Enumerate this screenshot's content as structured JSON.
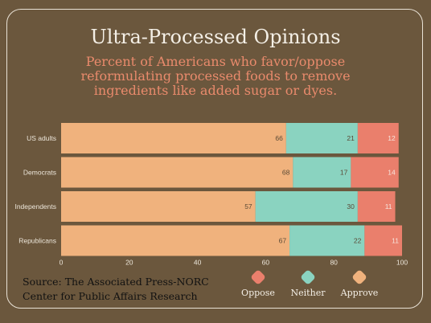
{
  "title": "Ultra-Processed Opinions",
  "subtitle": "Percent of Americans who favor/oppose reformulating processed foods to remove ingredients like added sugar or dyes.",
  "source": "Source: The Associated Press-NORC Center for Public Affairs Research",
  "colors": {
    "background": "#6b573d",
    "approve": "#f0b27d",
    "neither": "#8ad3c0",
    "oppose": "#ea7f6c",
    "axis_text": "#ece6da"
  },
  "legend": [
    {
      "label": "Oppose",
      "color": "#ea7f6c"
    },
    {
      "label": "Neither",
      "color": "#8ad3c0"
    },
    {
      "label": "Approve",
      "color": "#f0b27d"
    }
  ],
  "chart_data": {
    "type": "bar",
    "orientation": "horizontal",
    "stacked": true,
    "categories": [
      "US adults",
      "Democrats",
      "Independents",
      "Republicans"
    ],
    "series": [
      {
        "name": "Approve",
        "values": [
          66,
          68,
          57,
          67
        ]
      },
      {
        "name": "Neither",
        "values": [
          21,
          17,
          30,
          22
        ]
      },
      {
        "name": "Oppose",
        "values": [
          12,
          14,
          11,
          11
        ]
      }
    ],
    "xlim": [
      0,
      100
    ],
    "xticks": [
      0,
      20,
      40,
      60,
      80,
      100
    ],
    "grid": false,
    "legend_position": "bottom-right"
  }
}
